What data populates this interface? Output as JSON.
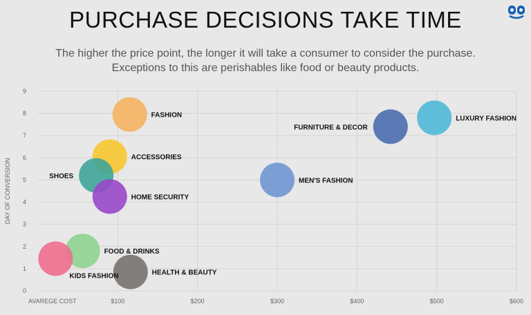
{
  "header": {
    "title": "PURCHASE DECISIONS TAKE TIME",
    "subtitle_line1": "The higher the price point, the longer it will take a consumer to consider the purchase.",
    "subtitle_line2": "Exceptions to this are perishables like food or beauty products."
  },
  "logo": {
    "icon": "brand-logo-icon",
    "color": "#1a5fb4"
  },
  "chart_data": {
    "type": "scatter",
    "xlabel": "AVAREGE COST",
    "ylabel": "DAY OF CONVERSION",
    "xlim": [
      0,
      600
    ],
    "ylim": [
      0,
      9
    ],
    "x_ticks": [
      {
        "value": 100,
        "label": "$100"
      },
      {
        "value": 200,
        "label": "$200"
      },
      {
        "value": 300,
        "label": "$300"
      },
      {
        "value": 400,
        "label": "$400"
      },
      {
        "value": 500,
        "label": "$500"
      },
      {
        "value": 600,
        "label": "$600"
      }
    ],
    "y_ticks": [
      {
        "value": 0,
        "label": "0"
      },
      {
        "value": 1,
        "label": "1"
      },
      {
        "value": 2,
        "label": "2"
      },
      {
        "value": 3,
        "label": "3"
      },
      {
        "value": 4,
        "label": "4"
      },
      {
        "value": 5,
        "label": "5"
      },
      {
        "value": 6,
        "label": "6"
      },
      {
        "value": 7,
        "label": "7"
      },
      {
        "value": 8,
        "label": "8"
      },
      {
        "value": 9,
        "label": "9"
      }
    ],
    "grid": true,
    "points": [
      {
        "label": "FASHION",
        "x": 115,
        "y": 7.95,
        "color": "#f5b261",
        "label_side": "right"
      },
      {
        "label": "ACCESSORIES",
        "x": 90,
        "y": 6.05,
        "color": "#f7c830",
        "label_side": "right"
      },
      {
        "label": "SHOES",
        "x": 73,
        "y": 5.2,
        "color": "#3fa49a",
        "label_side": "left"
      },
      {
        "label": "HOME SECURITY",
        "x": 90,
        "y": 4.25,
        "color": "#9848c9",
        "label_side": "right"
      },
      {
        "label": "FOOD & DRINKS",
        "x": 56,
        "y": 1.8,
        "color": "#8ed38f",
        "label_side": "right"
      },
      {
        "label": "KIDS FASHION",
        "x": 22,
        "y": 1.45,
        "color": "#f06e8e",
        "label_side": "below-right"
      },
      {
        "label": "HEALTH & BEAUTY",
        "x": 116,
        "y": 0.85,
        "color": "#767270",
        "label_side": "right"
      },
      {
        "label": "MEN'S FASHION",
        "x": 300,
        "y": 5.0,
        "color": "#7096d3",
        "label_side": "right"
      },
      {
        "label": "FURNITURE & DECOR",
        "x": 442,
        "y": 7.4,
        "color": "#4a6daf",
        "label_side": "left"
      },
      {
        "label": "LUXURY FASHION",
        "x": 497,
        "y": 7.8,
        "color": "#4fb8d6",
        "label_side": "right"
      }
    ]
  }
}
